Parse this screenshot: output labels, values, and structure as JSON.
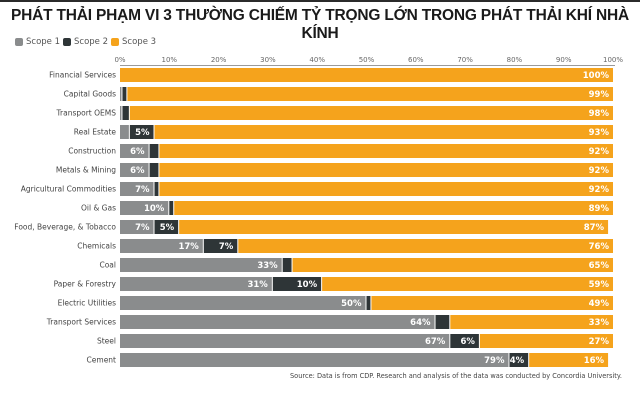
{
  "chart_data": {
    "type": "bar",
    "orientation": "horizontal",
    "stacked": true,
    "title": "PHÁT THẢI PHẠM VI 3 THƯỜNG CHIẾM TỶ TRỌNG LỚN TRONG PHÁT THẢI KHÍ NHÀ KÍNH",
    "xlabel": "",
    "ylabel": "",
    "xlim": [
      0,
      100
    ],
    "xticks": [
      "0%",
      "10%",
      "20%",
      "30%",
      "40%",
      "50%",
      "60%",
      "70%",
      "80%",
      "90%",
      "100%"
    ],
    "legend_position": "top-left",
    "grid": false,
    "categories": [
      "Financial Services",
      "Capital Goods",
      "Transport OEMS",
      "Real Estate",
      "Construction",
      "Metals & Mining",
      "Agricultural Commodities",
      "Oil & Gas",
      "Food, Beverage, & Tobacco",
      "Chemicals",
      "Coal",
      "Paper & Forestry",
      "Electric Utilities",
      "Transport Services",
      "Steel",
      "Cement"
    ],
    "series": [
      {
        "name": "Scope 1",
        "color": "#8a8c8d",
        "values": [
          0,
          0.5,
          0.5,
          2,
          6,
          6,
          7,
          10,
          7,
          17,
          33,
          31,
          50,
          64,
          67,
          79
        ],
        "labels": [
          "",
          "",
          "",
          "",
          "6%",
          "6%",
          "7%",
          "10%",
          "7%",
          "17%",
          "33%",
          "31%",
          "50%",
          "64%",
          "67%",
          "79%"
        ]
      },
      {
        "name": "Scope 2",
        "color": "#2e3537",
        "values": [
          0,
          1,
          1.5,
          5,
          2,
          2,
          1,
          1,
          5,
          7,
          2,
          10,
          1,
          3,
          6,
          4
        ],
        "labels": [
          "",
          "",
          "",
          "5%",
          "",
          "",
          "",
          "",
          "5%",
          "7%",
          "",
          "10%",
          "",
          "",
          "6%",
          "4%"
        ]
      },
      {
        "name": "Scope 3",
        "color": "#f5a31c",
        "values": [
          100,
          99,
          98,
          93,
          92,
          92,
          92,
          89,
          87,
          76,
          65,
          59,
          49,
          33,
          27,
          16
        ],
        "labels": [
          "100%",
          "99%",
          "98%",
          "93%",
          "92%",
          "92%",
          "92%",
          "89%",
          "87%",
          "76%",
          "65%",
          "59%",
          "49%",
          "33%",
          "27%",
          "16%"
        ]
      }
    ],
    "source": "Source: Data is from CDP. Research and analysis of the data was conducted by Concordia University."
  }
}
